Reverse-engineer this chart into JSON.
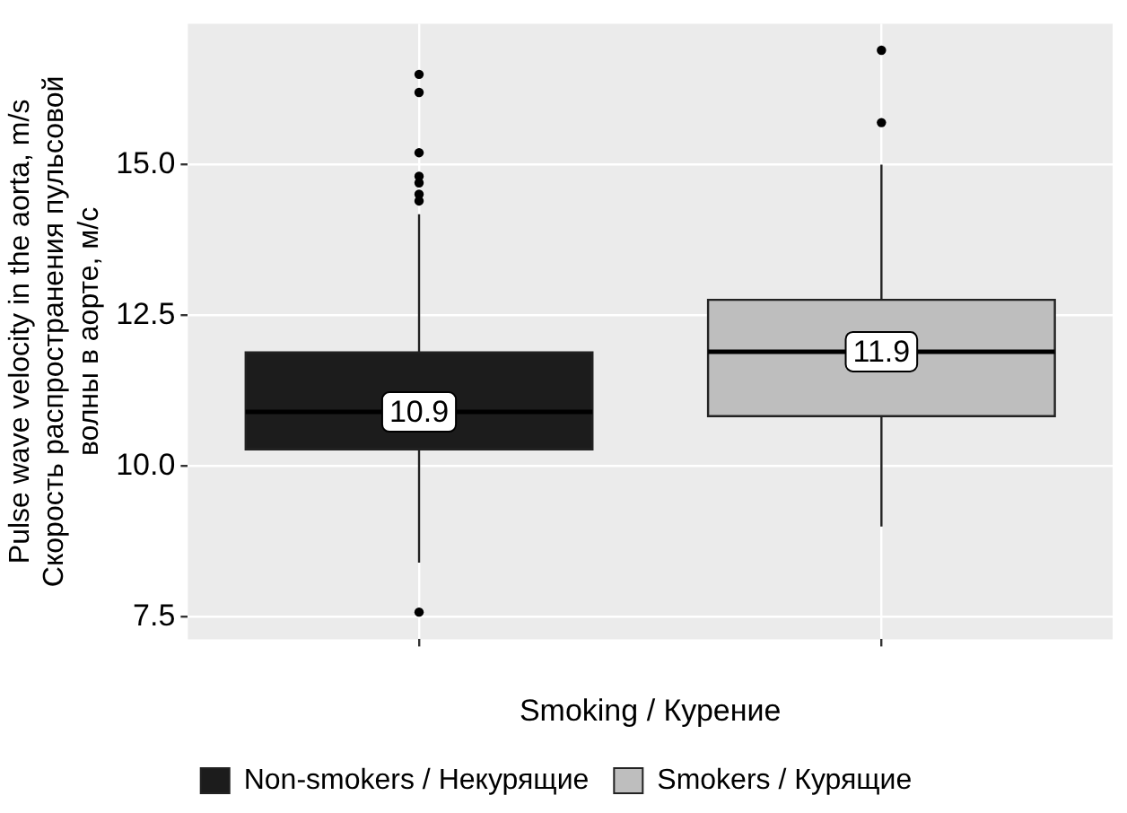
{
  "chart_data": {
    "type": "box",
    "xlabel": "Smoking / Курение",
    "ylabel": "Pulse wave velocity in the aorta, m/s\nСкорость распространения пульсовой\nволны в аорте, м/с",
    "categories": [
      null,
      null
    ],
    "series": [
      {
        "name": "Non-smokers / Некурящие",
        "color": "#1c1c1c",
        "value_labels": [
          "10.9",
          null
        ],
        "boxes": [
          {
            "low": 8.4,
            "q1": 10.28,
            "median": 10.9,
            "q3": 11.89,
            "high": 14.18,
            "outliers": [
              7.58,
              14.4,
              14.51,
              14.7,
              14.81,
              15.2,
              16.2,
              16.5
            ]
          },
          null
        ]
      },
      {
        "name": "Smokers / Курящие",
        "color": "#bebebe",
        "value_labels": [
          null,
          "11.9"
        ],
        "boxes": [
          null,
          {
            "low": 9.0,
            "q1": 10.83,
            "median": 11.9,
            "q3": 12.76,
            "high": 15.0,
            "outliers": [
              15.7,
              16.9
            ]
          }
        ]
      }
    ],
    "ylim": [
      7.13,
      17.34
    ],
    "yticks": [
      7.5,
      {
        "value": 10,
        "label": "10.0"
      },
      12.5,
      {
        "value": 15,
        "label": "15.0"
      }
    ],
    "grid": true,
    "legend": "bottom"
  }
}
